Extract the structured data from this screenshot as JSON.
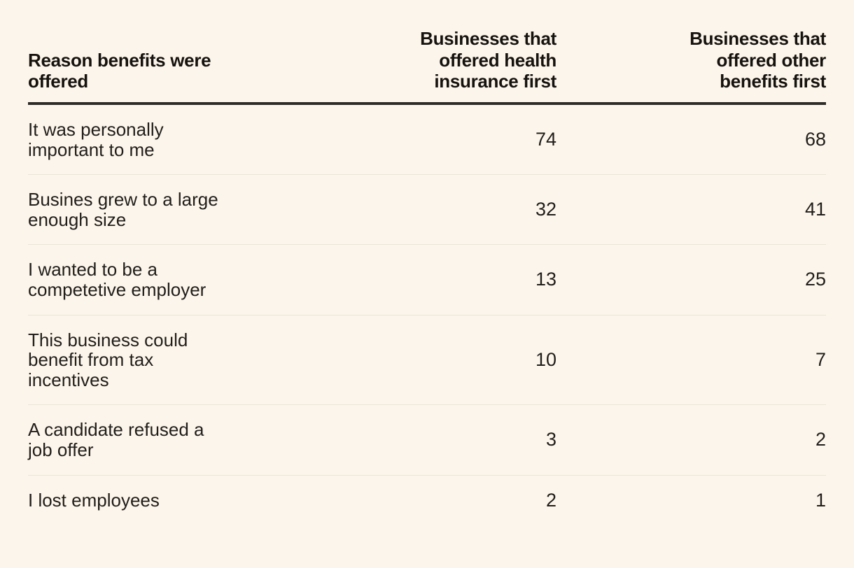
{
  "colors": {
    "background": "#FCF5EB",
    "text": "#211E1A",
    "header_text": "#16130F",
    "header_rule": "#2E2B28",
    "row_divider": "#EAE4D6"
  },
  "table": {
    "columns": [
      {
        "label": "Reason benefits were\noffered",
        "align": "left"
      },
      {
        "label": "Businesses that\noffered health\ninsurance first",
        "align": "right"
      },
      {
        "label": "Businesses that\noffered other\nbenefits first",
        "align": "right"
      }
    ],
    "rows": [
      {
        "reason": "It was personally\nimportant to me",
        "health_first": 74,
        "other_first": 68
      },
      {
        "reason": "Busines grew to a large\nenough size",
        "health_first": 32,
        "other_first": 41
      },
      {
        "reason": "I wanted to be a\ncompetetive employer",
        "health_first": 13,
        "other_first": 25
      },
      {
        "reason": "This business could\nbenefit from tax\nincentives",
        "health_first": 10,
        "other_first": 7
      },
      {
        "reason": "A candidate refused a\njob offer",
        "health_first": 3,
        "other_first": 2
      },
      {
        "reason": "I lost employees",
        "health_first": 2,
        "other_first": 1
      }
    ]
  },
  "chart_data": {
    "type": "table",
    "title": "Reason benefits were offered",
    "categories": [
      "It was personally important to me",
      "Busines grew to a large enough size",
      "I wanted to be a competetive employer",
      "This business could benefit from tax incentives",
      "A candidate refused a job offer",
      "I lost employees"
    ],
    "series": [
      {
        "name": "Businesses that offered health insurance first",
        "values": [
          74,
          32,
          13,
          10,
          3,
          2
        ]
      },
      {
        "name": "Businesses that offered other benefits first",
        "values": [
          68,
          41,
          25,
          7,
          2,
          1
        ]
      }
    ]
  }
}
